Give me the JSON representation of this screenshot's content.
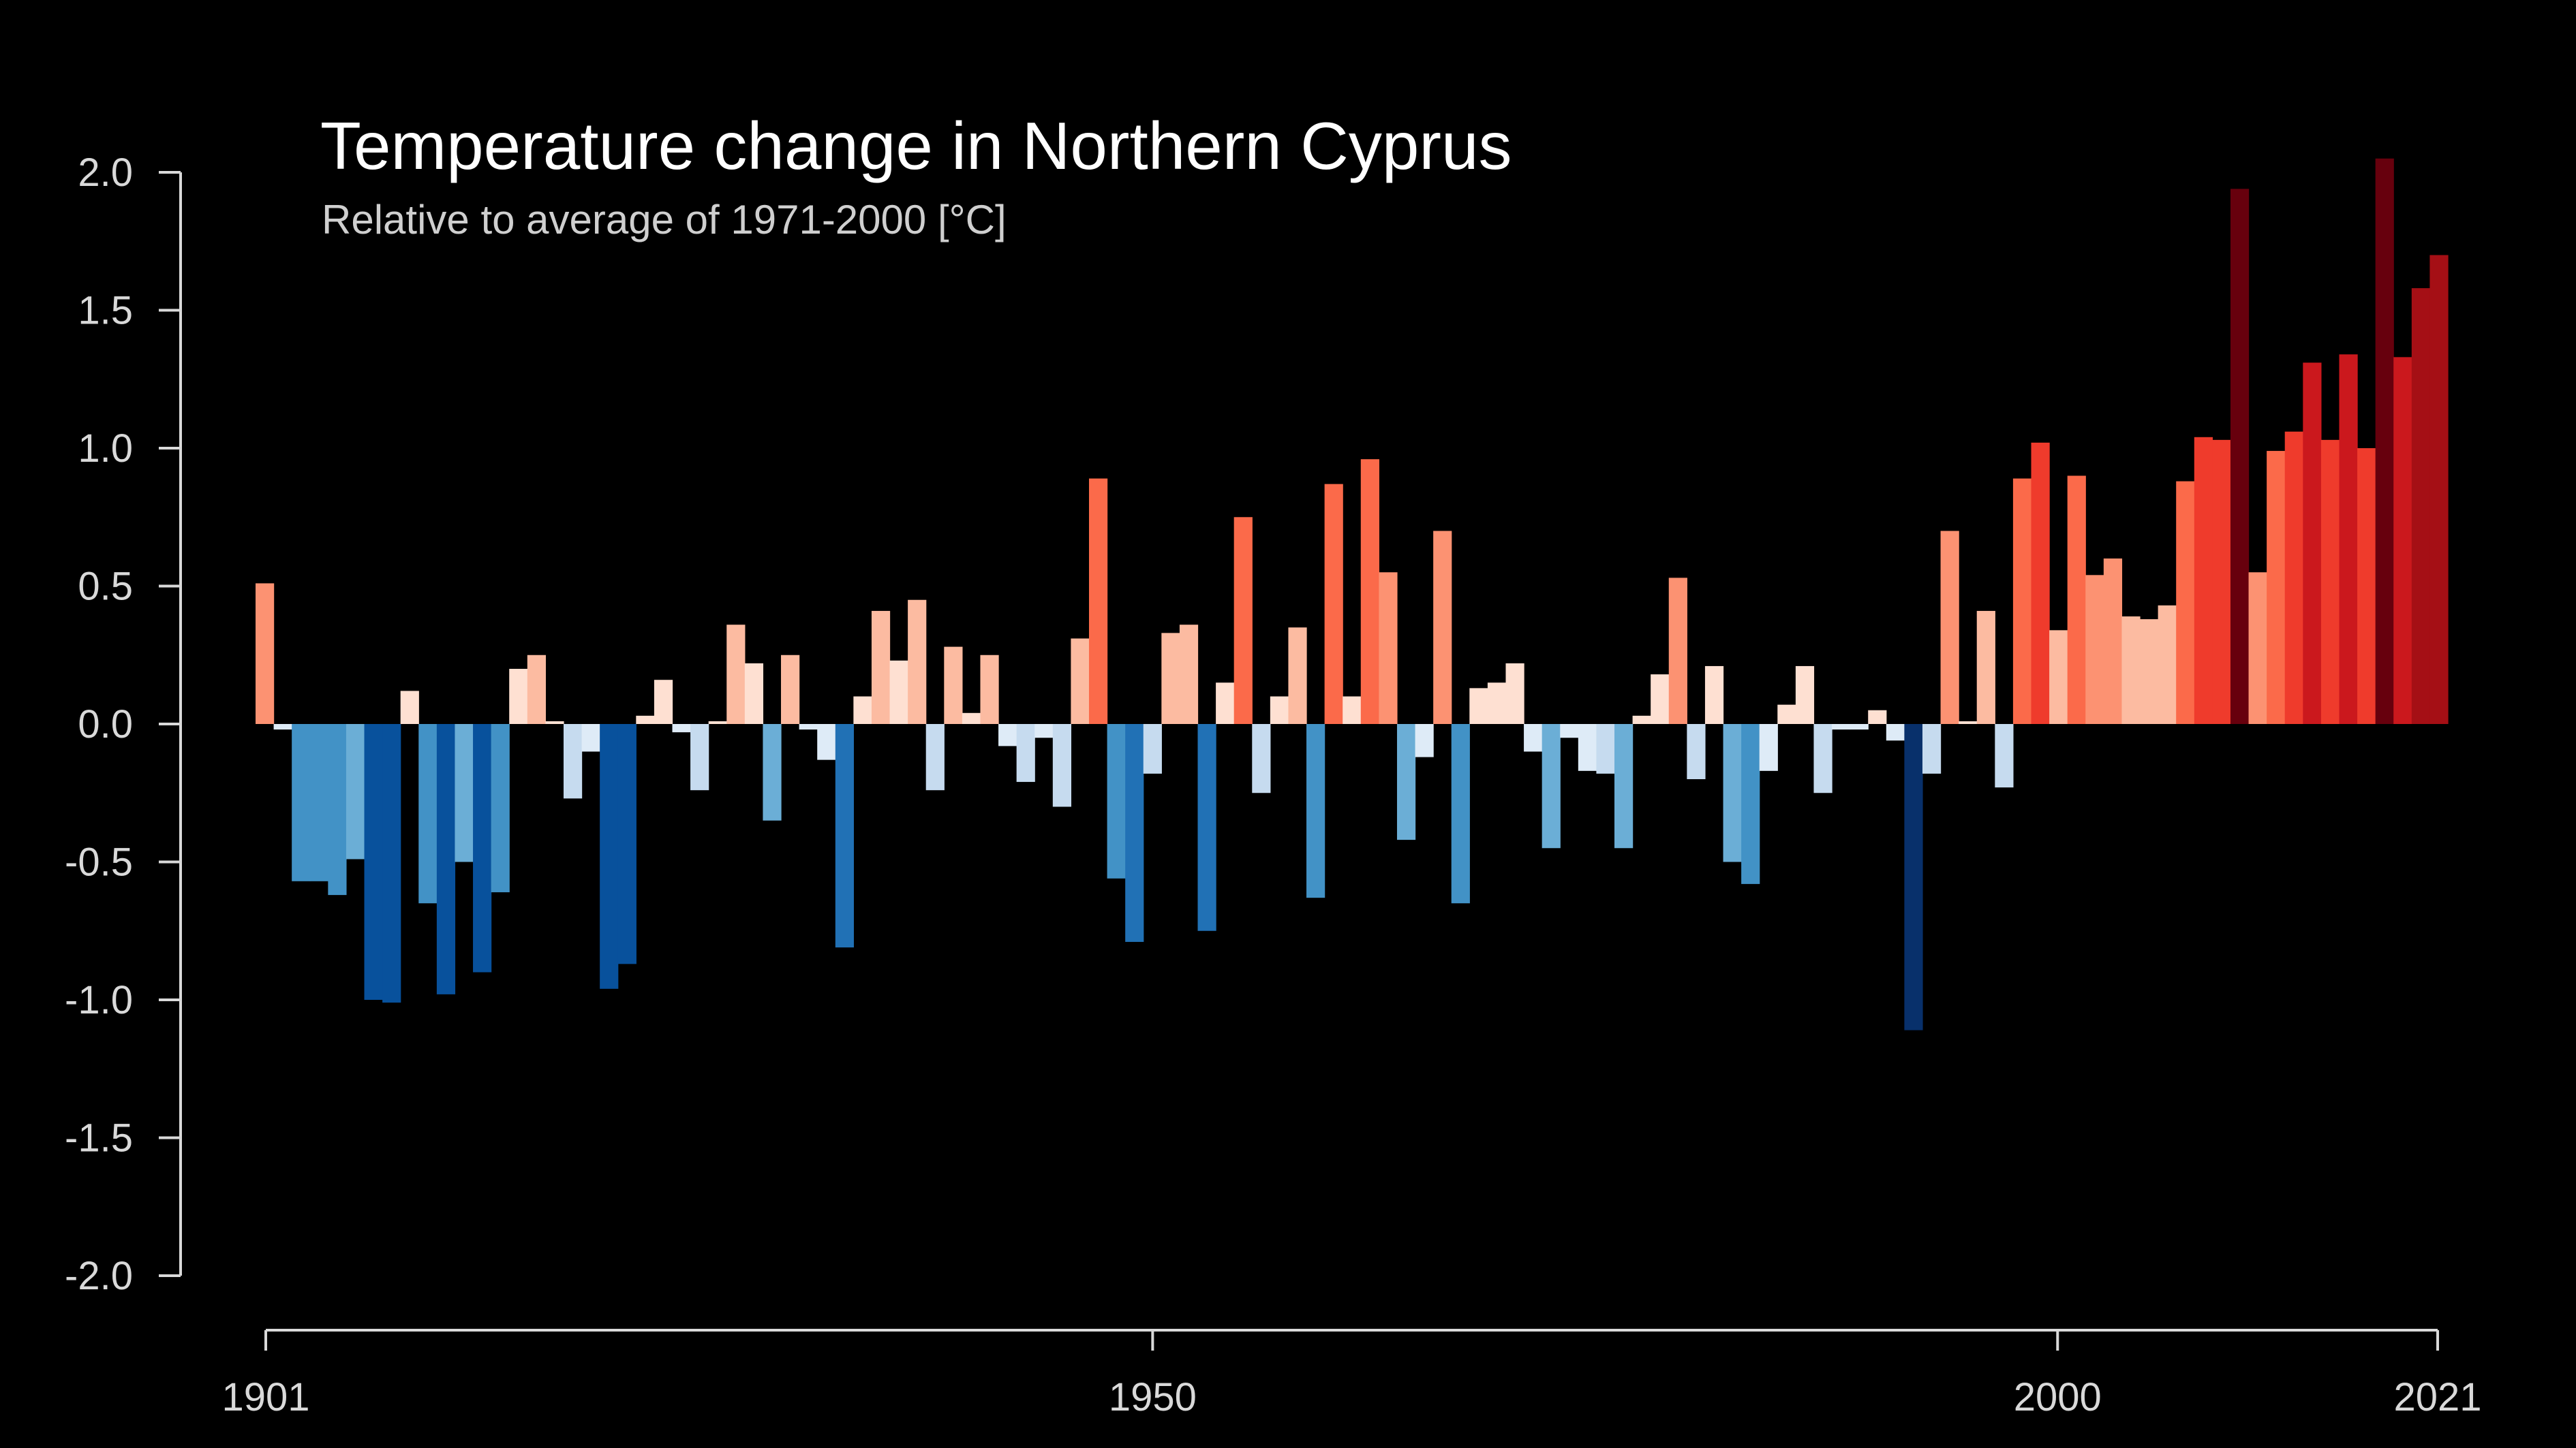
{
  "chart_data": {
    "type": "bar",
    "title": "Temperature change in Northern Cyprus",
    "subtitle": "Relative to average of 1971-2000  [°C]",
    "xlabel": "",
    "ylabel": "",
    "x_start": 1901,
    "x_end": 2021,
    "ylim": [
      -2.0,
      2.0
    ],
    "yticks": [
      "2.0",
      "1.5",
      "1.0",
      "0.5",
      "0.0",
      "-0.5",
      "-1.0",
      "-1.5",
      "-2.0"
    ],
    "ytick_values": [
      2.0,
      1.5,
      1.0,
      0.5,
      0.0,
      -0.5,
      -1.0,
      -1.5,
      -2.0
    ],
    "xticks": [
      "1901",
      "1950",
      "2000",
      "2021"
    ],
    "xtick_values": [
      1901,
      1950,
      2000,
      2021
    ],
    "grid": false,
    "legend": "none",
    "color_scale": {
      "negative": [
        "#deebf7",
        "#c6dbef",
        "#6baed6",
        "#4292c6",
        "#2171b5",
        "#08519c",
        "#08306b"
      ],
      "positive": [
        "#fee0d2",
        "#fcbba1",
        "#fc9272",
        "#fb6a4a",
        "#ef3b2c",
        "#cb181d",
        "#a50f15",
        "#67000d"
      ]
    },
    "values": [
      0.51,
      -0.02,
      -0.57,
      -0.57,
      -0.62,
      -0.49,
      -1.0,
      -1.01,
      0.12,
      -0.65,
      -0.98,
      -0.5,
      -0.9,
      -0.61,
      0.2,
      0.25,
      0.01,
      -0.27,
      -0.1,
      -0.96,
      -0.87,
      0.03,
      0.16,
      -0.03,
      -0.24,
      0.01,
      0.36,
      0.22,
      -0.35,
      0.25,
      -0.02,
      -0.13,
      -0.81,
      0.1,
      0.41,
      0.23,
      0.45,
      -0.24,
      0.28,
      0.04,
      0.25,
      -0.08,
      -0.21,
      -0.05,
      -0.3,
      0.31,
      0.89,
      -0.56,
      -0.79,
      -0.18,
      0.33,
      0.36,
      -0.75,
      0.15,
      0.75,
      -0.25,
      0.1,
      0.35,
      -0.63,
      0.87,
      0.1,
      0.96,
      0.55,
      -0.42,
      -0.12,
      0.7,
      -0.65,
      0.13,
      0.15,
      0.22,
      -0.1,
      -0.45,
      -0.05,
      -0.17,
      -0.18,
      -0.45,
      0.03,
      0.18,
      0.53,
      -0.2,
      0.21,
      -0.5,
      -0.58,
      -0.17,
      0.07,
      0.21,
      -0.25,
      -0.02,
      -0.02,
      0.05,
      -0.06,
      -1.11,
      -0.18,
      0.7,
      0.0,
      0.41,
      -0.23,
      0.89,
      1.02,
      0.34,
      0.9,
      0.54,
      0.6,
      0.39,
      0.38,
      0.43,
      0.88,
      1.04,
      1.03,
      1.94,
      0.55,
      0.99,
      1.06,
      1.31,
      1.03,
      1.34,
      1.0,
      2.05,
      1.33,
      1.58,
      1.7
    ]
  }
}
